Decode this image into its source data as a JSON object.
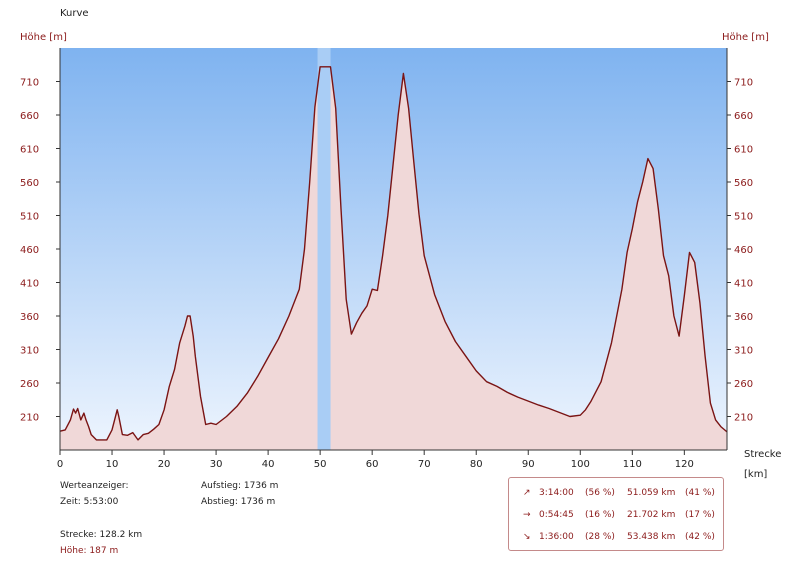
{
  "title": "Kurve",
  "chart_data": {
    "type": "area",
    "ylabel_left": "Höhe [m]",
    "ylabel_right": "Höhe [m]",
    "xlabel": "Strecke",
    "xunit": "[km]",
    "xlim": [
      0,
      128.2
    ],
    "ylim": [
      160,
      760
    ],
    "xticks": [
      0,
      10,
      20,
      30,
      40,
      50,
      60,
      70,
      80,
      90,
      100,
      110,
      120
    ],
    "yticks": [
      210,
      260,
      310,
      360,
      410,
      460,
      510,
      560,
      610,
      660,
      710
    ],
    "highlight_range": [
      49.5,
      52.0
    ],
    "line_color": "#7a1414",
    "fill_color": "#f0d8d8",
    "sky_top_color": "#7fb3f0",
    "sky_bottom_color": "#eef5fe",
    "series": [
      {
        "x": [
          0,
          1,
          2,
          2.6,
          3,
          3.4,
          4,
          4.6,
          5,
          5.5,
          6,
          7,
          8,
          9,
          10,
          10.5,
          11,
          11.3,
          12,
          13,
          14,
          15,
          16,
          17,
          18,
          19,
          20,
          21,
          22,
          23,
          24,
          24.5,
          25,
          25.6,
          26,
          27,
          28,
          29,
          30,
          32,
          34,
          36,
          38,
          40,
          42,
          44,
          46,
          47,
          48,
          49,
          50,
          51,
          52,
          53,
          54,
          55,
          56,
          57,
          58,
          59,
          60,
          61,
          62,
          63,
          64,
          65,
          66,
          67,
          68,
          69,
          70,
          72,
          74,
          76,
          78,
          80,
          82,
          84,
          86,
          88,
          90,
          92,
          94,
          96,
          98,
          100,
          101,
          102,
          104,
          106,
          108,
          109,
          110,
          111,
          112,
          113,
          114,
          115,
          116,
          117,
          118,
          119,
          120,
          121,
          122,
          123,
          124,
          125,
          126,
          127,
          128.2
        ],
        "y": [
          188,
          190,
          205,
          221,
          215,
          222,
          205,
          215,
          205,
          195,
          183,
          175,
          175,
          175,
          190,
          205,
          220,
          210,
          183,
          182,
          186,
          175,
          183,
          185,
          191,
          198,
          220,
          255,
          280,
          320,
          345,
          360,
          360,
          330,
          300,
          240,
          198,
          200,
          198,
          210,
          225,
          245,
          270,
          298,
          326,
          360,
          400,
          460,
          560,
          672,
          732,
          732,
          732,
          670,
          520,
          385,
          333,
          350,
          364,
          375,
          400,
          398,
          450,
          510,
          585,
          660,
          722,
          670,
          590,
          512,
          450,
          392,
          352,
          322,
          300,
          278,
          262,
          255,
          246,
          239,
          233,
          227,
          222,
          216,
          210,
          212,
          220,
          232,
          262,
          320,
          400,
          455,
          490,
          530,
          560,
          595,
          580,
          520,
          450,
          420,
          360,
          330,
          390,
          455,
          440,
          380,
          300,
          230,
          205,
          195,
          187
        ]
      }
    ]
  },
  "info": {
    "werteanzeiger": "Werteanzeiger:",
    "zeit": "Zeit: 5:53:00",
    "aufstieg": "Aufstieg: 1736 m",
    "abstieg": "Abstieg: 1736 m",
    "strecke": "Strecke: 128.2 km",
    "hoehe": "Höhe: 187 m"
  },
  "stats": [
    {
      "icon": "arrow-up-right-icon",
      "glyph": "↗",
      "time": "3:14:00",
      "time_pct": "(56 %)",
      "dist": "51.059 km",
      "dist_pct": "(41 %)"
    },
    {
      "icon": "arrow-right-icon",
      "glyph": "→",
      "time": "0:54:45",
      "time_pct": "(16 %)",
      "dist": "21.702 km",
      "dist_pct": "(17 %)"
    },
    {
      "icon": "arrow-down-right-icon",
      "glyph": "↘",
      "time": "1:36:00",
      "time_pct": "(28 %)",
      "dist": "53.438 km",
      "dist_pct": "(42 %)"
    }
  ]
}
